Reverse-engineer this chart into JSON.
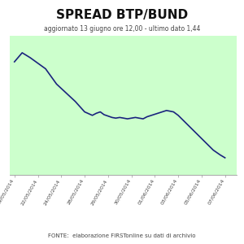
{
  "title": "SPREAD BTP/BUND",
  "subtitle": "aggiornato 13 giugno ore 12,00 - ultimo dato 1,44",
  "footer": "FONTE:  elaborazione FIRSTonline su dati di archivio",
  "x_labels": [
    "19/05/2014",
    "22/05/2014",
    "24/05/2014",
    "28/05/2014",
    "29/05/2014",
    "30/05/2014",
    "01/06/2014",
    "03/06/2014",
    "05/06/2014",
    "07/06/2014"
  ],
  "y_values": [
    2.82,
    2.95,
    2.88,
    2.8,
    2.72,
    2.5,
    2.25,
    2.1,
    2.05,
    2.08,
    2.1,
    2.06,
    2.04,
    2.02,
    2.01,
    2.02,
    2.01,
    2.0,
    2.01,
    2.02,
    2.01,
    2.0,
    2.03,
    2.12,
    2.1,
    2.05,
    1.65,
    1.55,
    1.48,
    1.44
  ],
  "x_indices": [
    0,
    0.33,
    0.67,
    1.0,
    1.33,
    1.8,
    2.6,
    3.0,
    3.33,
    3.5,
    3.67,
    3.83,
    4.0,
    4.17,
    4.33,
    4.5,
    4.67,
    4.83,
    5.0,
    5.17,
    5.33,
    5.5,
    5.67,
    6.5,
    6.8,
    7.0,
    8.2,
    8.5,
    8.8,
    9.0
  ],
  "line_color": "#1a237e",
  "plot_bg": "#ccffcc",
  "outer_bg": "#ffffff",
  "grid_color": "#aaddcc",
  "ylim": [
    1.2,
    3.2
  ],
  "xlim": [
    -0.2,
    9.5
  ],
  "title_fontsize": 11,
  "subtitle_fontsize": 5.5,
  "footer_fontsize": 5.0,
  "tick_fontsize": 4.5
}
